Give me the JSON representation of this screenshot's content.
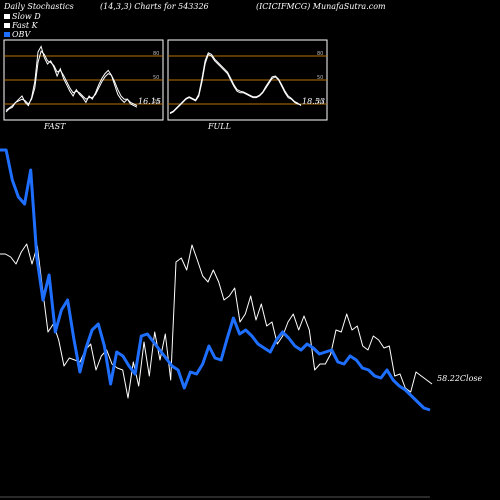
{
  "header": {
    "left": "Daily Stochastics",
    "center": "(14,3,3) Charts for 543326",
    "right": "(ICICIFMCG) MunafaSutra.com"
  },
  "legend": [
    {
      "label": "Slow  D",
      "color": "#ffffff"
    },
    {
      "label": "Fast K",
      "color": "#ffffff"
    },
    {
      "label": "OBV",
      "color": "#1f6fff"
    }
  ],
  "colors": {
    "background": "#000000",
    "price_line": "#ffffff",
    "obv_line": "#1f6fff",
    "level_line": "#b8720c"
  },
  "chart_data": [
    {
      "type": "line",
      "label": "FAST",
      "levels": [
        20,
        50,
        80
      ],
      "ylim": [
        0,
        100
      ],
      "last_value_label": "16.15",
      "series": [
        {
          "values": [
            10,
            14,
            16,
            22,
            26,
            30,
            22,
            18,
            28,
            48,
            85,
            92,
            78,
            70,
            74,
            66,
            55,
            64,
            52,
            44,
            36,
            30,
            38,
            32,
            28,
            22,
            30,
            26,
            34,
            44,
            52,
            58,
            62,
            56,
            44,
            32,
            26,
            22,
            26,
            20,
            18,
            16
          ]
        },
        {
          "values": [
            12,
            15,
            18,
            22,
            24,
            26,
            24,
            20,
            26,
            40,
            72,
            86,
            82,
            74,
            72,
            68,
            60,
            62,
            56,
            48,
            40,
            34,
            36,
            34,
            30,
            26,
            28,
            28,
            32,
            40,
            48,
            54,
            58,
            56,
            48,
            38,
            30,
            26,
            26,
            22,
            20,
            18
          ]
        }
      ]
    },
    {
      "type": "line",
      "label": "FULL",
      "levels": [
        20,
        50,
        80
      ],
      "ylim": [
        0,
        100
      ],
      "last_value_label": "18.53",
      "series": [
        {
          "values": [
            8,
            10,
            14,
            18,
            22,
            26,
            28,
            26,
            24,
            30,
            48,
            70,
            82,
            80,
            74,
            70,
            66,
            62,
            58,
            50,
            42,
            36,
            34,
            34,
            32,
            30,
            28,
            28,
            30,
            34,
            40,
            46,
            52,
            54,
            50,
            42,
            34,
            28,
            26,
            22,
            20,
            19
          ]
        },
        {
          "values": [
            9,
            11,
            15,
            19,
            23,
            27,
            29,
            27,
            25,
            32,
            52,
            74,
            84,
            82,
            76,
            72,
            68,
            64,
            60,
            52,
            44,
            38,
            36,
            35,
            33,
            31,
            29,
            29,
            31,
            35,
            42,
            48,
            54,
            55,
            51,
            44,
            36,
            30,
            27,
            23,
            21,
            18
          ]
        }
      ]
    },
    {
      "type": "line",
      "last_value_label": "58.22",
      "last_value_suffix": "Close",
      "series": [
        {
          "name": "Close",
          "values": [
            254,
            254,
            257,
            264,
            252,
            244,
            264,
            246,
            290,
            332,
            324,
            340,
            366,
            358,
            360,
            362,
            350,
            344,
            370,
            356,
            350,
            364,
            368,
            370,
            398,
            362,
            386,
            342,
            376,
            332,
            360,
            334,
            380,
            262,
            258,
            270,
            245,
            260,
            276,
            282,
            270,
            282,
            300,
            296,
            288,
            322,
            314,
            296,
            320,
            304,
            326,
            322,
            344,
            336,
            322,
            314,
            330,
            316,
            330,
            370,
            364,
            364,
            354,
            330,
            332,
            314,
            330,
            326,
            346,
            350,
            336,
            340,
            348,
            346,
            376,
            374,
            388,
            392,
            372,
            376,
            380,
            384
          ]
        },
        {
          "name": "OBV",
          "values": [
            150,
            150,
            180,
            197,
            204,
            170,
            258,
            300,
            275,
            332,
            310,
            300,
            338,
            372,
            348,
            330,
            324,
            346,
            384,
            352,
            356,
            366,
            374,
            336,
            334,
            342,
            350,
            358,
            366,
            370,
            388,
            372,
            374,
            364,
            346,
            358,
            360,
            338,
            318,
            334,
            330,
            336,
            344,
            348,
            352,
            340,
            332,
            338,
            346,
            350,
            344,
            348,
            354,
            352,
            350,
            362,
            364,
            356,
            360,
            368,
            370,
            376,
            378,
            370,
            380,
            386,
            390,
            396,
            402,
            408,
            410
          ]
        }
      ]
    }
  ]
}
